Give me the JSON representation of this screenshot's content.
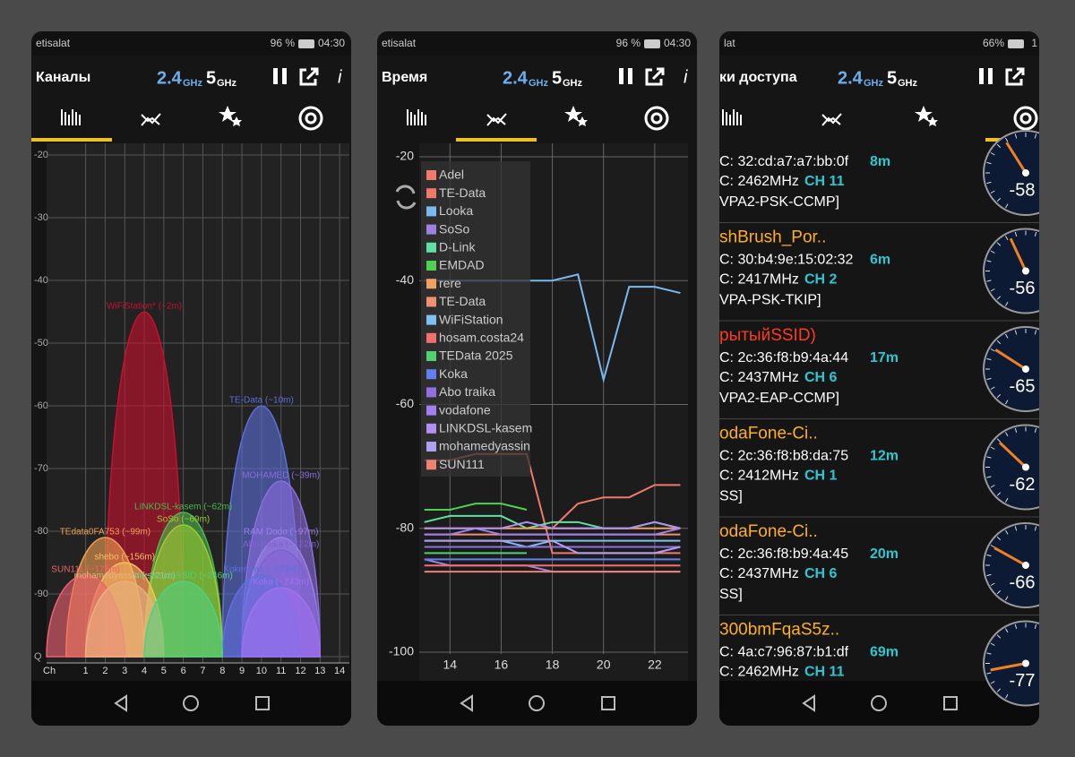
{
  "screens": [
    {
      "status": {
        "carrier": "etisalat",
        "battery": "96 %",
        "time": "04:30"
      },
      "title": "Каналы",
      "band_a": "2.4",
      "band_a_unit": "GHz",
      "band_b": "5",
      "band_b_unit": "GHz",
      "info": "i",
      "chart_data": {
        "type": "area",
        "x_label": "Ch",
        "xlim": [
          -1,
          14.5
        ],
        "xticks": [
          1,
          2,
          3,
          4,
          5,
          6,
          7,
          8,
          9,
          10,
          11,
          12,
          13,
          14
        ],
        "ylim": [
          -100,
          -20
        ],
        "yticks": [
          -20,
          -30,
          -40,
          -50,
          -60,
          -70,
          -80,
          -90,
          {
            "value": -100,
            "label": "Q"
          }
        ],
        "grid": true,
        "series": [
          {
            "name": "WiFiStation* (~2m)",
            "channel": 4,
            "dbm": -45,
            "color": "#c8102e"
          },
          {
            "name": "TE-Data (~10m)",
            "channel": 10,
            "dbm": -60,
            "color": "#5b6fd8"
          },
          {
            "name": "MOHAMED (~39m)",
            "channel": 11,
            "dbm": -72,
            "color": "#8a6de0"
          },
          {
            "name": "LINKDSL-kasem (~62m)",
            "channel": 6,
            "dbm": -77,
            "color": "#4cb84c"
          },
          {
            "name": "SoSo (~69m)",
            "channel": 6,
            "dbm": -79,
            "color": "#9acd32"
          },
          {
            "name": "TEdata0FA753 (~99m)",
            "channel": 2,
            "dbm": -81,
            "color": "#f0a050"
          },
          {
            "name": "RAM Dodo (~97m)",
            "channel": 11,
            "dbm": -81,
            "color": "#9b7fe8"
          },
          {
            "name": "Abo traika (~122m)",
            "channel": 11,
            "dbm": -83,
            "color": "#8060d0"
          },
          {
            "name": "shebo (~156m)",
            "channel": 3,
            "dbm": -85,
            "color": "#f5c060"
          },
          {
            "name": "SUN111 (~175m)",
            "channel": 1,
            "dbm": -87,
            "color": "#f06070"
          },
          {
            "name": "Kokenono (~173m)",
            "channel": 10,
            "dbm": -87,
            "color": "#6070e0"
          },
          {
            "name": "mohamedyassin (~221m)",
            "channel": 3,
            "dbm": -88,
            "color": "#e8b080"
          },
          {
            "name": "VersteckteSSID (~246m)",
            "channel": 6,
            "dbm": -88,
            "color": "#50d080"
          },
          {
            "name": "Koka (~243m)",
            "channel": 11,
            "dbm": -89,
            "color": "#a070f0"
          }
        ]
      }
    },
    {
      "status": {
        "carrier": "etisalat",
        "battery": "96 %",
        "time": "04:30"
      },
      "title": "Время",
      "band_a": "2.4",
      "band_a_unit": "GHz",
      "band_b": "5",
      "band_b_unit": "GHz",
      "info": "i",
      "chart_data": {
        "type": "line",
        "xlim": [
          12.8,
          23.3
        ],
        "xticks": [
          14,
          16,
          18,
          20,
          22
        ],
        "ylim": [
          -100,
          -20
        ],
        "yticks": [
          -20,
          -40,
          -60,
          -80,
          -100
        ],
        "grid": true,
        "x": [
          13,
          14,
          15,
          16,
          17,
          18,
          19,
          20,
          21,
          22,
          23
        ],
        "series": [
          {
            "name": "Adel",
            "color": "#f07a6a",
            "values": [
              -69,
              -69,
              -68,
              -68,
              -68,
              -84,
              -84,
              -84,
              -84,
              -84,
              -84
            ]
          },
          {
            "name": "TE-Data",
            "color": "#f07a6a",
            "values": [
              null,
              null,
              null,
              null,
              null,
              -80,
              -76,
              -75,
              -75,
              -73,
              -73
            ]
          },
          {
            "name": "Looka",
            "color": "#7ab8f0",
            "values": [
              -40,
              -40,
              -40,
              -40,
              -40,
              -40,
              -39,
              -56,
              -41,
              -41,
              -42
            ]
          },
          {
            "name": "SoSo",
            "color": "#a080e0",
            "values": [
              -85,
              -86,
              -86,
              -86,
              -86,
              -87,
              -87,
              -87,
              -87,
              -87,
              -87
            ]
          },
          {
            "name": "D-Link",
            "color": "#60e0a0",
            "values": [
              -79,
              -78,
              -78,
              -78,
              -80,
              -79,
              -79,
              -80,
              -80,
              -79,
              -80
            ]
          },
          {
            "name": "EMDAD",
            "color": "#50d050",
            "values": [
              -77,
              -77,
              -76,
              -76,
              -77,
              null,
              null,
              null,
              null,
              null,
              null
            ]
          },
          {
            "name": "rere",
            "color": "#f0a060",
            "values": [
              -80,
              -80,
              -80,
              -80,
              -80,
              -80,
              -80,
              -80,
              -80,
              -80,
              -80
            ]
          },
          {
            "name": "TE-Data",
            "color": "#f09070",
            "values": [
              -81,
              -81,
              -81,
              -81,
              -81,
              -81,
              -81,
              -81,
              -81,
              -81,
              -81
            ]
          },
          {
            "name": "WiFiStation",
            "color": "#80c0f0",
            "values": [
              -82,
              -82,
              -82,
              -82,
              -83,
              -82,
              -82,
              -82,
              -82,
              -82,
              -82
            ]
          },
          {
            "name": "hosam.costa24",
            "color": "#f07070",
            "values": [
              -86,
              -86,
              -86,
              -86,
              -86,
              -86,
              -86,
              -86,
              -86,
              -86,
              -86
            ]
          },
          {
            "name": "TEData 2025",
            "color": "#50d070",
            "values": [
              -84,
              -84,
              -84,
              -84,
              -84,
              null,
              null,
              null,
              null,
              null,
              null
            ]
          },
          {
            "name": "Koka",
            "color": "#6080f0",
            "values": [
              -85,
              -85,
              -85,
              -85,
              -85,
              -85,
              -85,
              -85,
              -85,
              -85,
              -85
            ]
          },
          {
            "name": "Abo traika",
            "color": "#9070e0",
            "values": [
              -83,
              -83,
              -83,
              -83,
              -83,
              -83,
              -83,
              -83,
              -83,
              -83,
              -83
            ]
          },
          {
            "name": "vodafone",
            "color": "#a080f0",
            "values": [
              -81,
              -81,
              -80,
              -81,
              -81,
              -81,
              -81,
              -81,
              -81,
              -81,
              -80
            ]
          },
          {
            "name": "LINKDSL-kasem",
            "color": "#b090f0",
            "values": [
              -80,
              -80,
              -80,
              -80,
              -79,
              -80,
              -80,
              -80,
              -80,
              -79,
              -80
            ]
          },
          {
            "name": "mohamedyassin",
            "color": "#b0a0f0",
            "values": [
              -82,
              -82,
              -82,
              -82,
              -82,
              -82,
              -84,
              -84,
              -84,
              -84,
              -83
            ]
          },
          {
            "name": "SUN111",
            "color": "#f08070",
            "values": [
              -87,
              -87,
              -87,
              -87,
              -87,
              -87,
              -87,
              -87,
              -87,
              -87,
              -87
            ]
          }
        ]
      }
    },
    {
      "status": {
        "carrier": "lat",
        "battery": "66%",
        "time": "1"
      },
      "title": "ки доступа",
      "band_a": "2.4",
      "band_a_unit": "GHz",
      "band_b": "5",
      "band_b_unit": "GHz",
      "access_points": [
        {
          "name": null,
          "mac": "C: 32:cd:a7:a7:bb:0f",
          "distance": "8m",
          "freq": "C: 2462MHz",
          "channel": "CH 11",
          "security": "VPA2-PSK-CCMP]",
          "dbm": -58
        },
        {
          "name": "shBrush_Por..",
          "mac": "C: 30:b4:9e:15:02:32",
          "distance": "6m",
          "freq": "C: 2417MHz",
          "channel": "CH 2",
          "security": "VPA-PSK-TKIP]",
          "dbm": -56
        },
        {
          "name": "рытыйSSID)",
          "mac": "C: 2c:36:f8:b9:4a:44",
          "distance": "17m",
          "freq": "C: 2437MHz",
          "channel": "CH 6",
          "security": "VPA2-EAP-CCMP]",
          "dbm": -65
        },
        {
          "name": "odaFone-Ci..",
          "mac": "C: 2c:36:f8:b8:da:75",
          "distance": "12m",
          "freq": "C: 2412MHz",
          "channel": "CH 1",
          "security": "SS]",
          "dbm": -62
        },
        {
          "name": "odaFone-Ci..",
          "mac": "C: 2c:36:f8:b9:4a:45",
          "distance": "20m",
          "freq": "C: 2437MHz",
          "channel": "CH 6",
          "security": "SS]",
          "dbm": -66
        },
        {
          "name": "300bmFqaS5z..",
          "mac": "C: 4a:c7:96:87:b1:df",
          "distance": "69m",
          "freq": "C: 2462MHz",
          "channel": "CH 11",
          "security": null,
          "dbm": -77
        }
      ]
    }
  ]
}
